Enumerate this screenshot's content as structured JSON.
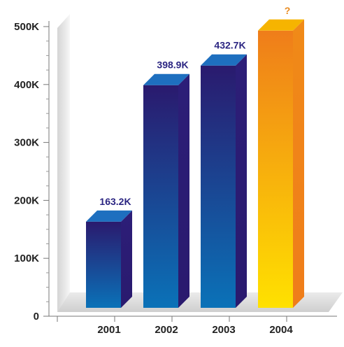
{
  "chart_data": {
    "type": "bar",
    "title": "",
    "xlabel": "",
    "ylabel": "",
    "categories": [
      "2001",
      "2002",
      "2003",
      "2004"
    ],
    "values": [
      163.2,
      398.9,
      432.7,
      493
    ],
    "data_labels": [
      "163.2K",
      "398.9K",
      "432.7K",
      "?"
    ],
    "ylim": [
      0,
      500
    ],
    "y_ticks": [
      {
        "value": 0,
        "label": "0"
      },
      {
        "value": 100,
        "label": "100K"
      },
      {
        "value": 200,
        "label": "200K"
      },
      {
        "value": 300,
        "label": "300K"
      },
      {
        "value": 400,
        "label": "400K"
      },
      {
        "value": 500,
        "label": "500K"
      }
    ],
    "grid": false,
    "legend": "none",
    "colors": {
      "bar_top": "#2a1a6e",
      "bar_bottom": "#0a72b8",
      "bar_side": "#2c1e78",
      "bar_cap": "#1e6fbf",
      "highlight_top": "#ef7d1a",
      "highlight_bottom": "#ffe100",
      "highlight_side": "#f08a18",
      "highlight_cap": "#f6b400",
      "label_normal": "#2b2582",
      "label_highlight": "#e8891d"
    }
  }
}
